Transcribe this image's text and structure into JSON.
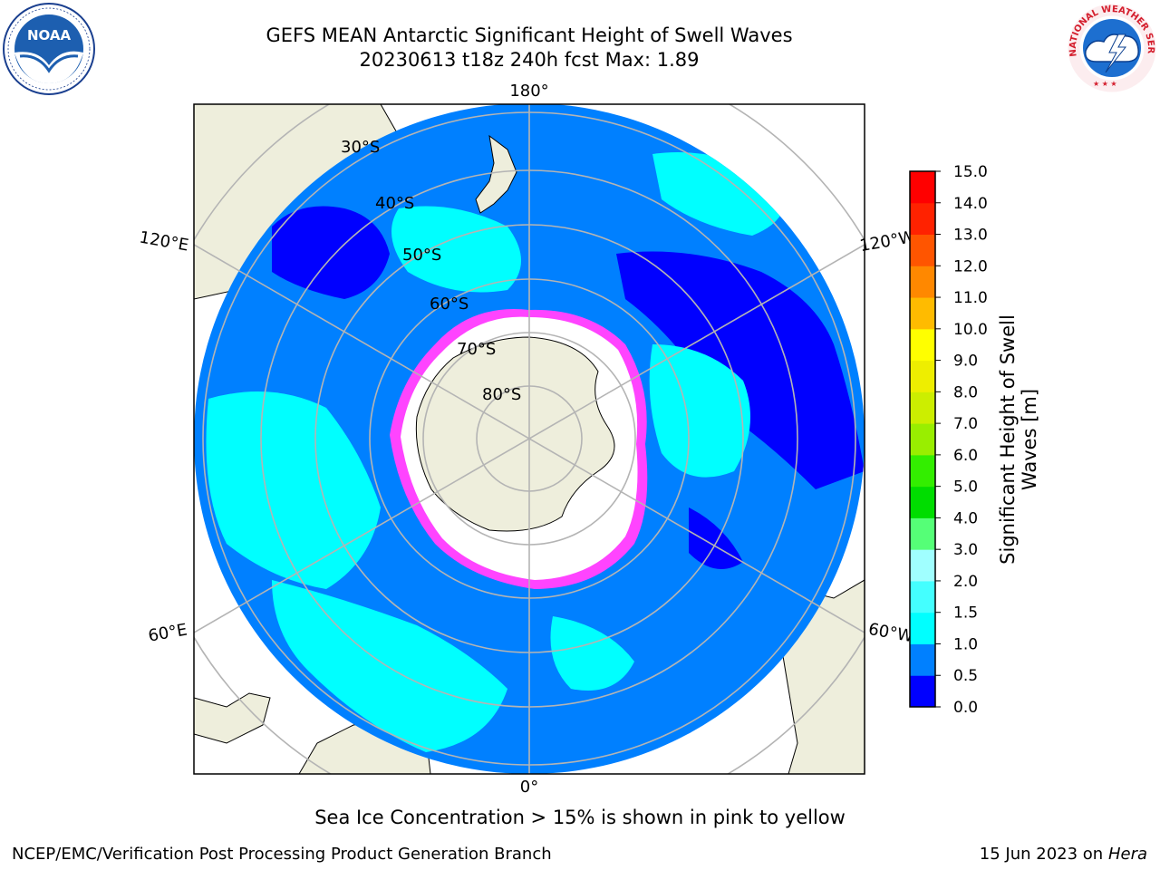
{
  "header": {
    "title_line1": "GEFS MEAN Antarctic Significant Height of Swell Waves",
    "title_line2": "20230613 t18z 240h fcst   Max: 1.89"
  },
  "map": {
    "projection": "south-polar-stereographic",
    "longitude_labels": {
      "top": "180°",
      "bottom": "0°",
      "upper_left": "120°E",
      "upper_right": "120°W",
      "lower_left": "60°E",
      "lower_right": "60°W"
    },
    "latitude_labels": [
      "30°S",
      "40°S",
      "50°S",
      "60°S",
      "70°S",
      "80°S"
    ],
    "colors": {
      "land": "#eeeedc",
      "ocean_0_0_5": "#0000ff",
      "ocean_0_5_1_0": "#0080ff",
      "ocean_1_0_1_5": "#00ffff",
      "sea_ice_white": "#ffffff",
      "sea_ice_edge": "#ff44ff",
      "grid": "#b4b4b4"
    }
  },
  "colorbar": {
    "label_line1": "Significant Height of Swell",
    "label_line2": "Waves [m]",
    "ticks": [
      "0.0",
      "0.5",
      "1.0",
      "1.5",
      "2.0",
      "3.0",
      "4.0",
      "5.0",
      "6.0",
      "7.0",
      "8.0",
      "9.0",
      "10.0",
      "11.0",
      "12.0",
      "13.0",
      "14.0",
      "15.0"
    ],
    "colors": [
      "#0000ff",
      "#0080ff",
      "#00ffff",
      "#44ffff",
      "#a0ffff",
      "#55ff77",
      "#00dd00",
      "#33ee00",
      "#99ee00",
      "#ccee00",
      "#eeee00",
      "#ffff00",
      "#ffbb00",
      "#ff8800",
      "#ff5500",
      "#ff2200",
      "#ff0000"
    ]
  },
  "caption": "Sea Ice Concentration > 15% is shown in pink to yellow",
  "footer": {
    "left": "NCEP/EMC/Verification Post Processing Product Generation Branch",
    "date": "15 Jun 2023 on",
    "host": "Hera"
  },
  "logos": {
    "noaa_text": "NOAA",
    "nws_text": "NATIONAL WEATHER SERVICE"
  }
}
